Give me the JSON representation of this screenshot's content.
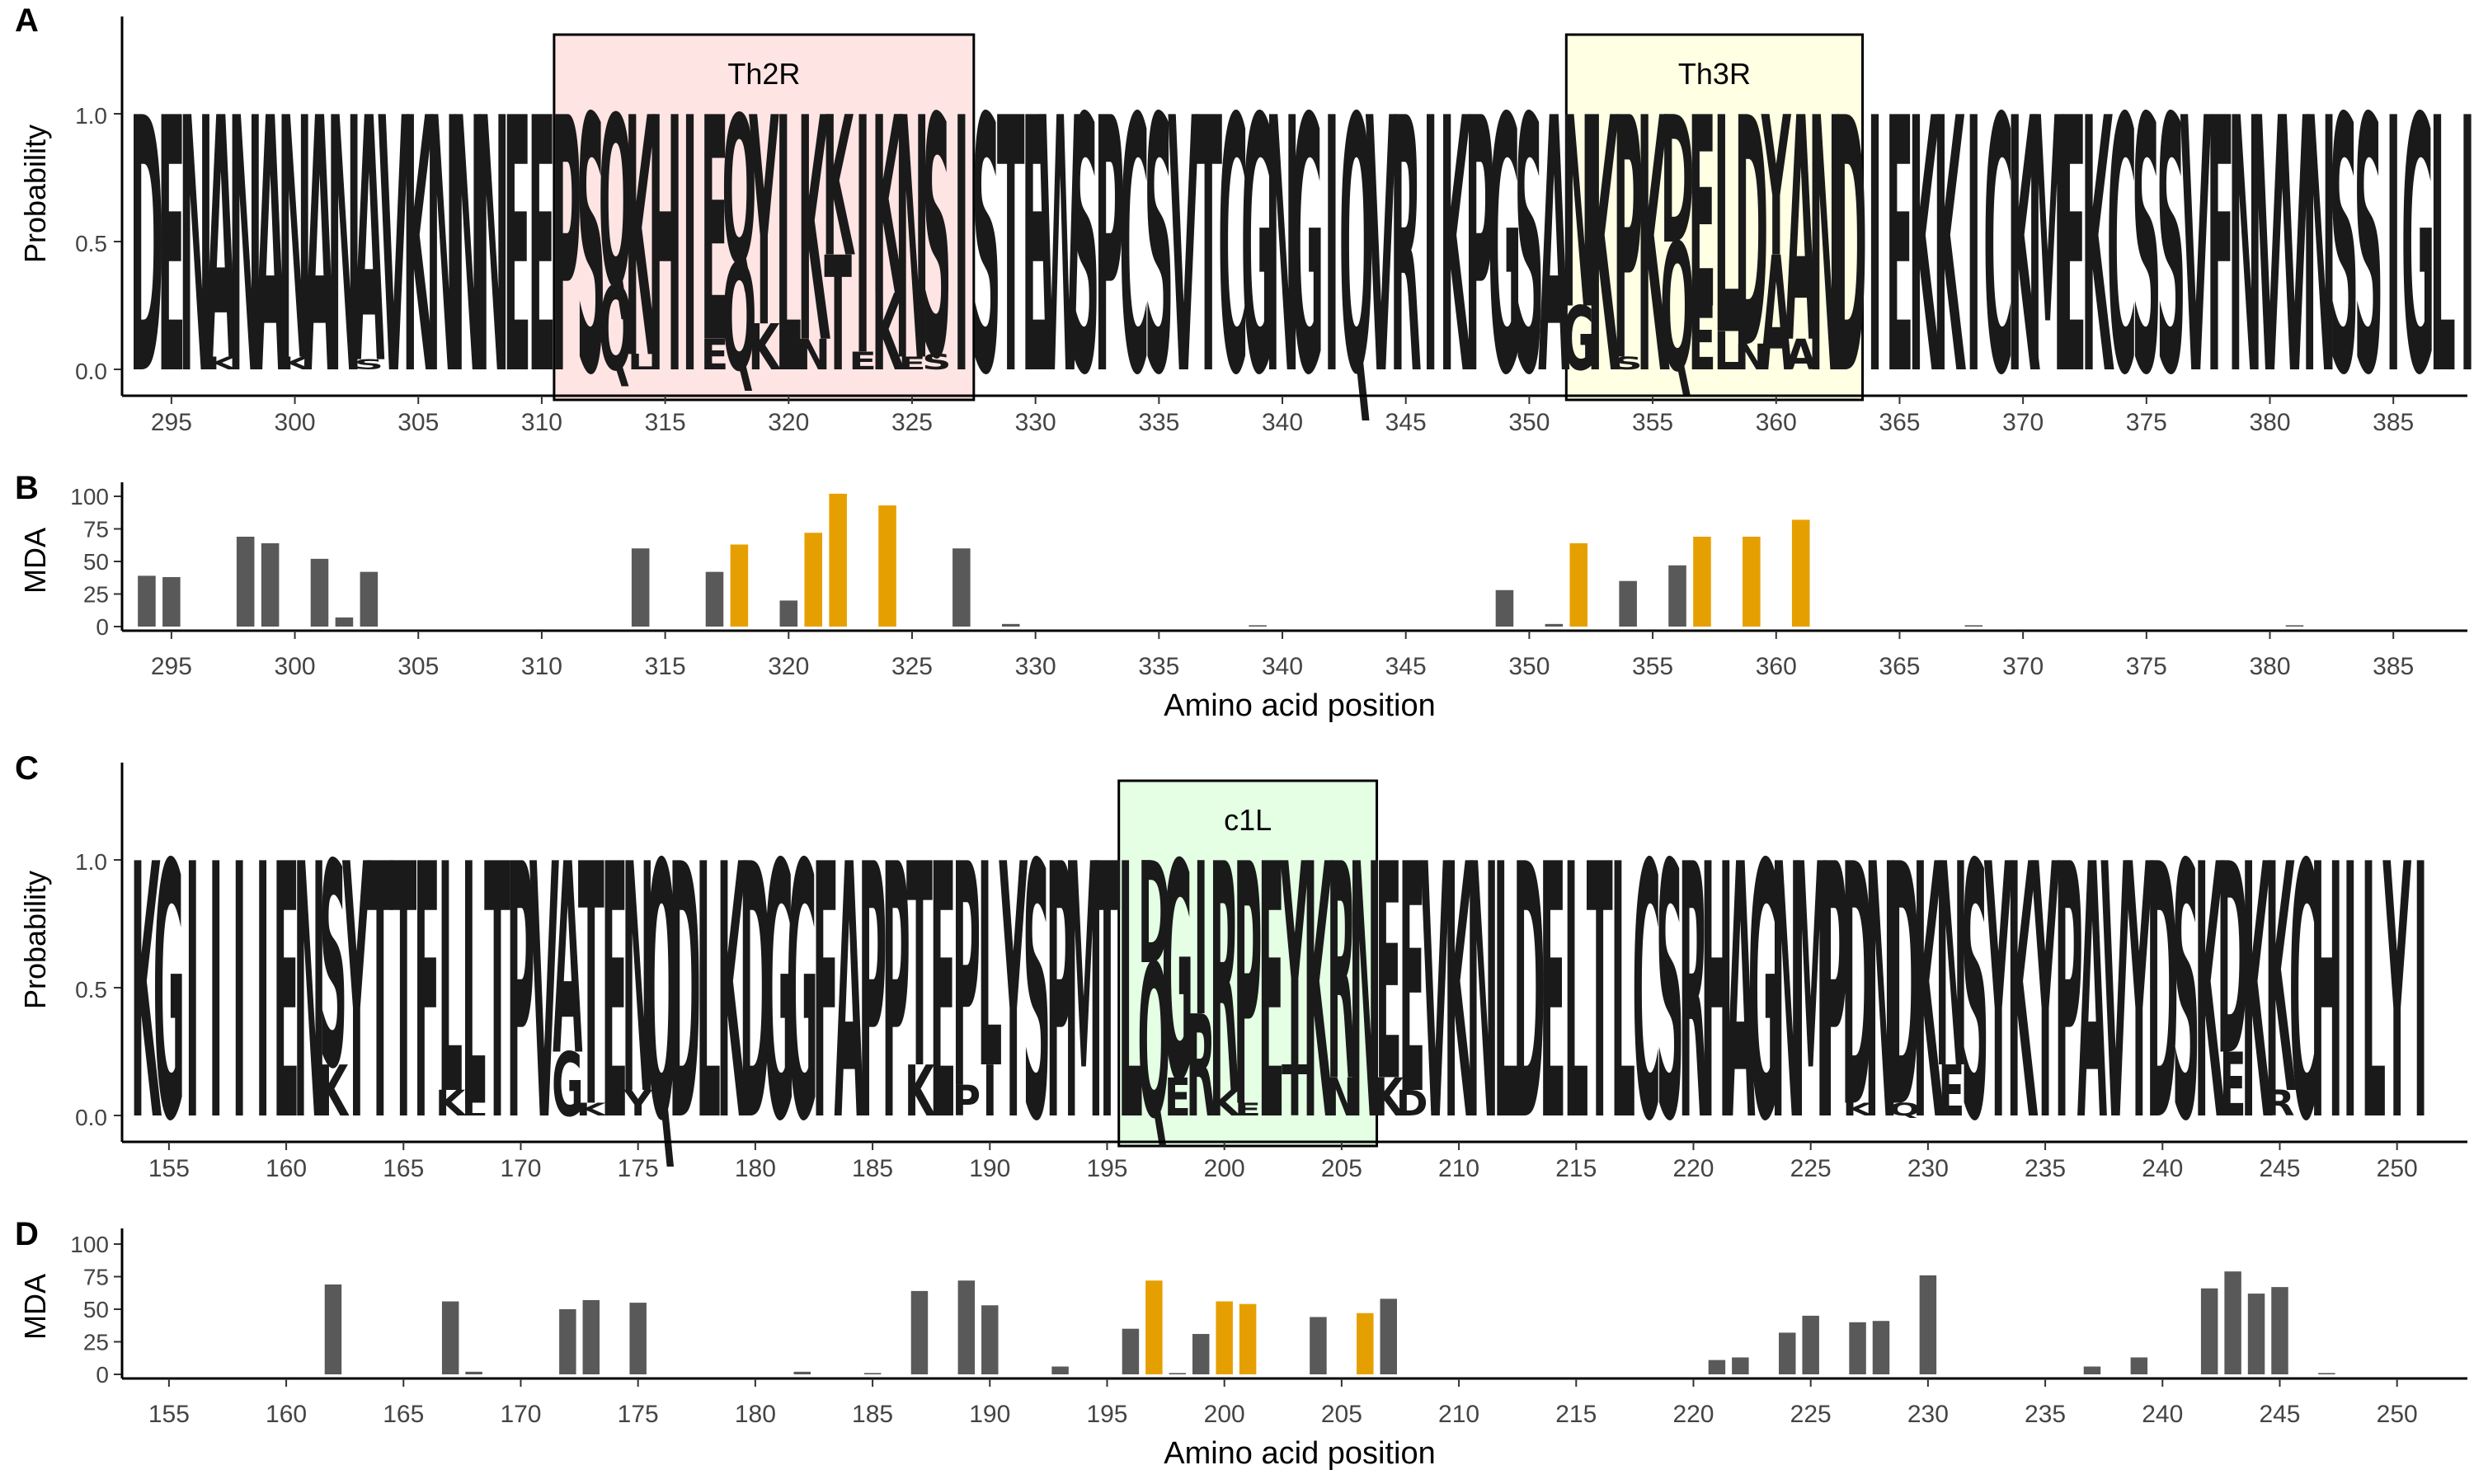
{
  "panels": {
    "A": {
      "label": "A",
      "ylabel": "Probability",
      "yticks": [
        "0.0",
        "0.5",
        "1.0"
      ]
    },
    "B": {
      "label": "B",
      "ylabel": "MDA",
      "xlabel": "Amino acid position",
      "yticks": [
        "0",
        "25",
        "50",
        "75",
        "100"
      ]
    },
    "C": {
      "label": "C",
      "ylabel": "Probability",
      "yticks": [
        "0.0",
        "0.5",
        "1.0"
      ]
    },
    "D": {
      "label": "D",
      "ylabel": "MDA",
      "xlabel": "Amino acid position",
      "yticks": [
        "0",
        "25",
        "50",
        "75",
        "100"
      ]
    }
  },
  "colors": {
    "highlight": "#E69F00",
    "normal": "#595959",
    "letters": "#1a1a1a",
    "Th2R": "#FFE4E4",
    "Th3R": "#FFFFE4",
    "c1L": "#E4FFE4"
  },
  "chart_data": [
    {
      "panel": "A",
      "type": "sequence-logo",
      "ylabel": "Probability",
      "ylim": [
        0,
        1.35
      ],
      "x_range": [
        293,
        388
      ],
      "xticks": [
        295,
        300,
        305,
        310,
        315,
        320,
        325,
        330,
        335,
        340,
        345,
        350,
        355,
        360,
        365,
        370,
        375,
        380,
        385
      ],
      "sequence": "DENANANANAVKNNNEEPSQKHIEQYLKKIKNSISTEWSPCSVTCGNGIQVRIKPGSANKPKDELDYANDIEKKICKMEKCSSVFNVVNSSIGLI",
      "minor_letters": [
        {
          "pos": 297,
          "letter": "K",
          "prob": 0.05
        },
        {
          "pos": 300,
          "letter": "K",
          "prob": 0.05
        },
        {
          "pos": 303,
          "letter": "S",
          "prob": 0.04
        },
        {
          "pos": 313,
          "letter": "Q",
          "prob": 0.33
        },
        {
          "pos": 314,
          "letter": "L",
          "prob": 0.06
        },
        {
          "pos": 317,
          "letter": "E",
          "prob": 0.12
        },
        {
          "pos": 318,
          "letter": "Q",
          "prob": 0.42
        },
        {
          "pos": 319,
          "letter": "K",
          "prob": 0.18
        },
        {
          "pos": 321,
          "letter": "N",
          "prob": 0.12
        },
        {
          "pos": 322,
          "letter": "T",
          "prob": 0.45
        },
        {
          "pos": 323,
          "letter": "E",
          "prob": 0.07
        },
        {
          "pos": 324,
          "letter": "K",
          "prob": 0.3
        },
        {
          "pos": 325,
          "letter": "E",
          "prob": 0.05
        },
        {
          "pos": 326,
          "letter": "S",
          "prob": 0.06
        },
        {
          "pos": 352,
          "letter": "G",
          "prob": 0.25
        },
        {
          "pos": 354,
          "letter": "S",
          "prob": 0.05
        },
        {
          "pos": 356,
          "letter": "Q",
          "prob": 0.5
        },
        {
          "pos": 357,
          "letter": "E",
          "prob": 0.25
        },
        {
          "pos": 358,
          "letter": "L",
          "prob": 0.15
        },
        {
          "pos": 359,
          "letter": "N",
          "prob": 0.1
        },
        {
          "pos": 360,
          "letter": "A",
          "prob": 0.45
        },
        {
          "pos": 361,
          "letter": "A",
          "prob": 0.12
        }
      ],
      "regions": [
        {
          "name": "Th2R",
          "start": 311,
          "end": 327,
          "color": "#FFE4E4"
        },
        {
          "name": "Th3R",
          "start": 352,
          "end": 363,
          "color": "#FFFFE4"
        }
      ]
    },
    {
      "panel": "B",
      "type": "bar",
      "xlabel": "Amino acid position",
      "ylabel": "MDA",
      "ylim": [
        0,
        105
      ],
      "x_range": [
        293,
        388
      ],
      "xticks": [
        295,
        300,
        305,
        310,
        315,
        320,
        325,
        330,
        335,
        340,
        345,
        350,
        355,
        360,
        365,
        370,
        375,
        380,
        385
      ],
      "x": [
        294,
        295,
        298,
        299,
        301,
        302,
        303,
        314,
        317,
        318,
        320,
        321,
        322,
        324,
        327,
        329,
        339,
        349,
        351,
        352,
        354,
        356,
        357,
        359,
        361,
        368,
        381
      ],
      "values": [
        39,
        38,
        69,
        64,
        52,
        7,
        42,
        60,
        42,
        63,
        20,
        72,
        102,
        93,
        60,
        2,
        1,
        28,
        2,
        64,
        35,
        47,
        69,
        69,
        82,
        1,
        1
      ],
      "highlight": [
        false,
        false,
        false,
        false,
        false,
        false,
        false,
        false,
        false,
        true,
        false,
        true,
        true,
        true,
        false,
        false,
        false,
        false,
        false,
        true,
        false,
        false,
        true,
        true,
        true,
        false,
        false
      ]
    },
    {
      "panel": "C",
      "type": "sequence-logo",
      "ylabel": "Probability",
      "ylim": [
        0,
        1.35
      ],
      "x_range": [
        153,
        253
      ],
      "xticks": [
        155,
        160,
        165,
        170,
        175,
        180,
        185,
        190,
        195,
        200,
        205,
        210,
        215,
        220,
        225,
        230,
        235,
        240,
        245,
        250
      ],
      "sequence": "KGIIIIENSYTTFLLTPVATENQDLKDGGFAPPTEPLYSPMTLDGIRPEYKRNEEVKNLDELTLCSRHAGNMPDNDKNSYKYPAVYDSKDKKCHILYI",
      "minor_letters": [
        {
          "pos": 162,
          "letter": "K",
          "prob": 0.2
        },
        {
          "pos": 167,
          "letter": "K",
          "prob": 0.1
        },
        {
          "pos": 168,
          "letter": "L",
          "prob": 0.05
        },
        {
          "pos": 172,
          "letter": "G",
          "prob": 0.25
        },
        {
          "pos": 173,
          "letter": "K",
          "prob": 0.05
        },
        {
          "pos": 175,
          "letter": "Y",
          "prob": 0.1
        },
        {
          "pos": 187,
          "letter": "K",
          "prob": 0.2
        },
        {
          "pos": 189,
          "letter": "P",
          "prob": 0.12
        },
        {
          "pos": 190,
          "letter": "I",
          "prob": 0.2
        },
        {
          "pos": 197,
          "letter": "Q",
          "prob": 0.6
        },
        {
          "pos": 198,
          "letter": "E",
          "prob": 0.15
        },
        {
          "pos": 199,
          "letter": "R",
          "prob": 0.4
        },
        {
          "pos": 200,
          "letter": "K",
          "prob": 0.1
        },
        {
          "pos": 201,
          "letter": "E",
          "prob": 0.05
        },
        {
          "pos": 203,
          "letter": "T",
          "prob": 0.2
        },
        {
          "pos": 205,
          "letter": "N",
          "prob": 0.15
        },
        {
          "pos": 207,
          "letter": "K",
          "prob": 0.15
        },
        {
          "pos": 208,
          "letter": "D",
          "prob": 0.1
        },
        {
          "pos": 227,
          "letter": "K",
          "prob": 0.05
        },
        {
          "pos": 229,
          "letter": "Q",
          "prob": 0.05
        },
        {
          "pos": 231,
          "letter": "E",
          "prob": 0.2
        },
        {
          "pos": 243,
          "letter": "E",
          "prob": 0.25
        },
        {
          "pos": 245,
          "letter": "R",
          "prob": 0.1
        }
      ],
      "regions": [
        {
          "name": "c1L",
          "start": 196,
          "end": 206,
          "color": "#E4FFE4"
        }
      ]
    },
    {
      "panel": "D",
      "type": "bar",
      "xlabel": "Amino acid position",
      "ylabel": "MDA",
      "ylim": [
        0,
        105
      ],
      "x_range": [
        153,
        253
      ],
      "xticks": [
        155,
        160,
        165,
        170,
        175,
        180,
        185,
        190,
        195,
        200,
        205,
        210,
        215,
        220,
        225,
        230,
        235,
        240,
        245,
        250
      ],
      "x": [
        162,
        167,
        168,
        172,
        173,
        175,
        182,
        185,
        187,
        189,
        190,
        193,
        196,
        197,
        198,
        199,
        200,
        201,
        204,
        206,
        207,
        221,
        222,
        224,
        225,
        227,
        228,
        230,
        237,
        239,
        242,
        243,
        244,
        245,
        247
      ],
      "values": [
        69,
        56,
        2,
        50,
        57,
        55,
        2,
        1,
        64,
        72,
        53,
        6,
        35,
        72,
        1,
        31,
        56,
        54,
        44,
        47,
        58,
        11,
        13,
        32,
        45,
        40,
        41,
        76,
        6,
        13,
        66,
        79,
        62,
        67,
        1
      ],
      "highlight": [
        false,
        false,
        false,
        false,
        false,
        false,
        false,
        false,
        false,
        false,
        false,
        false,
        false,
        true,
        false,
        false,
        true,
        true,
        false,
        true,
        false,
        false,
        false,
        false,
        false,
        false,
        false,
        false,
        false,
        false,
        false,
        false,
        false,
        false,
        false
      ]
    }
  ]
}
